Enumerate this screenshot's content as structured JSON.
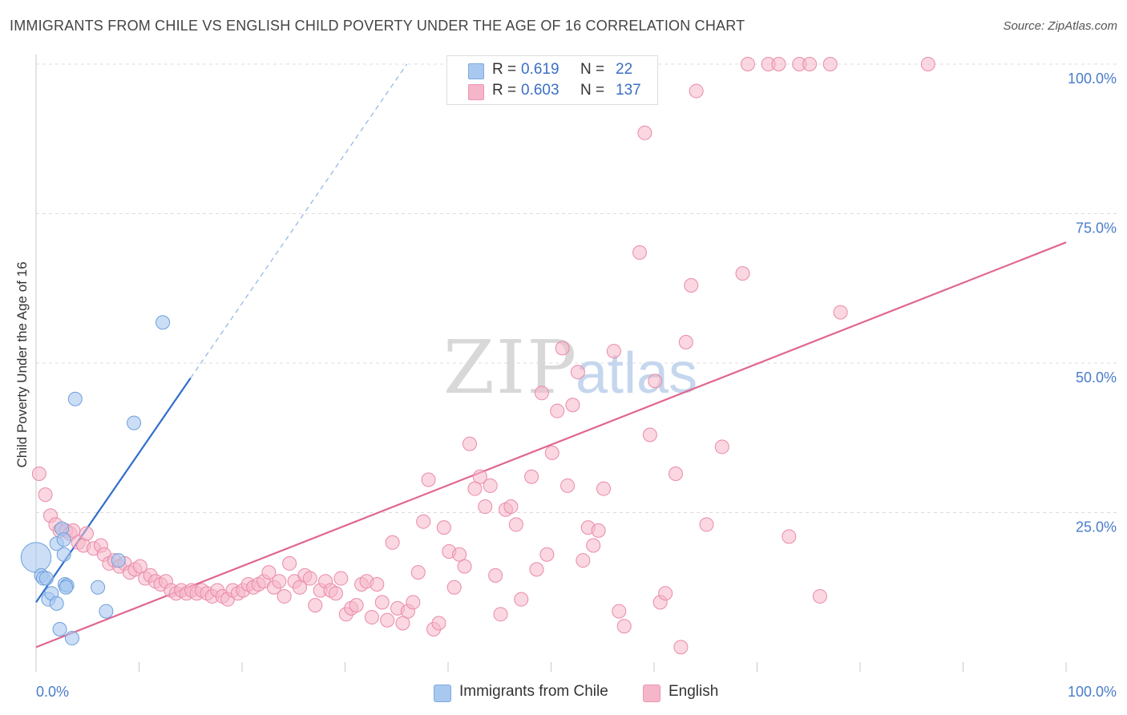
{
  "title": "IMMIGRANTS FROM CHILE VS ENGLISH CHILD POVERTY UNDER THE AGE OF 16 CORRELATION CHART",
  "source": "Source: ZipAtlas.com",
  "watermark": {
    "zip": "ZIP",
    "atlas": "atlas"
  },
  "legend": {
    "rows": [
      {
        "r_label": "R =",
        "r_value": "0.619",
        "n_label": "N =",
        "n_value": "22",
        "color": "#a9c8f0"
      },
      {
        "r_label": "R =",
        "r_value": "0.603",
        "n_label": "N =",
        "n_value": "137",
        "color": "#f6b6c9"
      }
    ]
  },
  "bottom_legend": [
    {
      "label": "Immigrants from Chile",
      "color": "#a9c8f0"
    },
    {
      "label": "English",
      "color": "#f6b6c9"
    }
  ],
  "chart_data": {
    "type": "scatter",
    "title": "IMMIGRANTS FROM CHILE VS ENGLISH CHILD POVERTY UNDER THE AGE OF 16 CORRELATION CHART",
    "xlabel": "",
    "ylabel": "Child Poverty Under the Age of 16",
    "xlim": [
      0,
      100
    ],
    "ylim": [
      0,
      100
    ],
    "x_tick_labels": [
      "0.0%",
      "100.0%"
    ],
    "y_tick_labels": [
      "25.0%",
      "50.0%",
      "75.0%",
      "100.0%"
    ],
    "y_ticks": [
      25,
      50,
      75,
      100
    ],
    "grid": true,
    "series": [
      {
        "name": "Immigrants from Chile",
        "color": "#a9c8f0",
        "stroke": "#6e9fdc",
        "trend_color": "#2f6fc9",
        "trend": {
          "x0": 0,
          "y0": 10,
          "x1": 15,
          "y1": 47.5,
          "dash_to_x": 36,
          "dash_to_y": 100
        },
        "points": [
          [
            0,
            17.5,
            2.2
          ],
          [
            0.5,
            14.5,
            1
          ],
          [
            0.7,
            14.0,
            1
          ],
          [
            1.2,
            10.5,
            1
          ],
          [
            1.5,
            11.5,
            1
          ],
          [
            2.0,
            19.8,
            1
          ],
          [
            2.3,
            5.5,
            1
          ],
          [
            2.0,
            9.8,
            1
          ],
          [
            2.5,
            22.3,
            1
          ],
          [
            2.7,
            18.0,
            1
          ],
          [
            2.7,
            20.5,
            1
          ],
          [
            2.8,
            13.0,
            1
          ],
          [
            3.0,
            12.8,
            1
          ],
          [
            3.5,
            4.0,
            1
          ],
          [
            3.8,
            44.0,
            1
          ],
          [
            6.0,
            12.5,
            1
          ],
          [
            6.8,
            8.5,
            1
          ],
          [
            9.5,
            40.0,
            1
          ],
          [
            12.3,
            56.8,
            1
          ],
          [
            8.0,
            17.0,
            1
          ],
          [
            1.0,
            14.0,
            1
          ],
          [
            2.9,
            12.5,
            1
          ]
        ]
      },
      {
        "name": "English",
        "color": "#f6b6c9",
        "stroke": "#ea8aa9",
        "trend_color": "#e06690",
        "trend": {
          "x0": 0,
          "y0": 2.5,
          "x1": 100,
          "y1": 70.2
        },
        "points": [
          [
            0.3,
            31.5
          ],
          [
            0.9,
            28.0
          ],
          [
            1.4,
            24.5
          ],
          [
            1.9,
            23.0
          ],
          [
            2.3,
            22.0
          ],
          [
            2.9,
            22.0
          ],
          [
            3.3,
            21.5
          ],
          [
            3.6,
            22.0
          ],
          [
            4.1,
            20.0
          ],
          [
            4.6,
            19.5
          ],
          [
            4.9,
            21.5
          ],
          [
            5.6,
            19.0
          ],
          [
            6.3,
            19.5
          ],
          [
            6.6,
            18.0
          ],
          [
            7.1,
            16.5
          ],
          [
            7.6,
            17.0
          ],
          [
            8.1,
            16.0
          ],
          [
            8.6,
            16.5
          ],
          [
            9.1,
            15.0
          ],
          [
            9.6,
            15.5
          ],
          [
            10.1,
            16.0
          ],
          [
            10.6,
            14.0
          ],
          [
            11.1,
            14.5
          ],
          [
            11.6,
            13.5
          ],
          [
            12.1,
            13.0
          ],
          [
            12.6,
            13.5
          ],
          [
            13.1,
            12.0
          ],
          [
            13.6,
            11.5
          ],
          [
            14.1,
            12.0
          ],
          [
            14.6,
            11.5
          ],
          [
            15.1,
            12.0
          ],
          [
            15.6,
            11.5
          ],
          [
            16.1,
            12.0
          ],
          [
            16.6,
            11.5
          ],
          [
            17.1,
            11.0
          ],
          [
            17.6,
            12.0
          ],
          [
            18.1,
            11.0
          ],
          [
            18.6,
            10.5
          ],
          [
            19.1,
            12.0
          ],
          [
            19.6,
            11.5
          ],
          [
            20.1,
            12.0
          ],
          [
            20.6,
            13.0
          ],
          [
            21.1,
            12.5
          ],
          [
            21.6,
            13.0
          ],
          [
            22.1,
            13.5
          ],
          [
            22.6,
            15.0
          ],
          [
            23.1,
            12.5
          ],
          [
            23.6,
            13.5
          ],
          [
            24.1,
            11.0
          ],
          [
            24.6,
            16.5
          ],
          [
            25.1,
            13.5
          ],
          [
            25.6,
            12.5
          ],
          [
            26.1,
            14.5
          ],
          [
            26.6,
            14.0
          ],
          [
            27.1,
            9.5
          ],
          [
            27.6,
            12.0
          ],
          [
            28.1,
            13.5
          ],
          [
            28.6,
            12.0
          ],
          [
            29.1,
            11.5
          ],
          [
            29.6,
            14.0
          ],
          [
            30.1,
            8.0
          ],
          [
            30.6,
            9.0
          ],
          [
            31.1,
            9.5
          ],
          [
            31.6,
            13.0
          ],
          [
            32.1,
            13.5
          ],
          [
            32.6,
            7.5
          ],
          [
            33.1,
            13.0
          ],
          [
            33.6,
            10.0
          ],
          [
            34.1,
            7.0
          ],
          [
            34.6,
            20.0
          ],
          [
            35.1,
            9.0
          ],
          [
            35.6,
            6.5
          ],
          [
            36.1,
            8.5
          ],
          [
            36.6,
            10.0
          ],
          [
            37.1,
            15.0
          ],
          [
            37.6,
            23.5
          ],
          [
            38.1,
            30.5
          ],
          [
            38.6,
            5.5
          ],
          [
            39.1,
            6.5
          ],
          [
            39.6,
            22.5
          ],
          [
            40.1,
            18.5
          ],
          [
            40.6,
            12.5
          ],
          [
            41.1,
            18.0
          ],
          [
            41.6,
            16.0
          ],
          [
            42.1,
            36.5
          ],
          [
            42.6,
            29.0
          ],
          [
            43.1,
            31.0
          ],
          [
            43.6,
            26.0
          ],
          [
            44.1,
            29.5
          ],
          [
            44.6,
            14.5
          ],
          [
            45.1,
            8.0
          ],
          [
            45.6,
            25.5
          ],
          [
            46.1,
            26.0
          ],
          [
            46.6,
            23.0
          ],
          [
            47.1,
            10.5
          ],
          [
            48.1,
            31.0
          ],
          [
            48.6,
            15.5
          ],
          [
            49.1,
            45.0
          ],
          [
            49.6,
            18.0
          ],
          [
            50.1,
            35.0
          ],
          [
            50.6,
            42.0
          ],
          [
            51.1,
            52.5
          ],
          [
            51.6,
            29.5
          ],
          [
            52.1,
            43.0
          ],
          [
            52.6,
            48.5
          ],
          [
            53.1,
            17.0
          ],
          [
            53.6,
            22.5
          ],
          [
            54.1,
            19.5
          ],
          [
            54.6,
            22.0
          ],
          [
            55.1,
            29.0
          ],
          [
            56.1,
            52.0
          ],
          [
            56.6,
            8.5
          ],
          [
            57.1,
            6.0
          ],
          [
            58.6,
            68.5
          ],
          [
            59.1,
            88.5
          ],
          [
            59.6,
            38.0
          ],
          [
            60.1,
            47.0
          ],
          [
            60.6,
            10.0
          ],
          [
            61.1,
            11.5
          ],
          [
            62.1,
            31.5
          ],
          [
            62.6,
            2.5
          ],
          [
            63.1,
            53.5
          ],
          [
            63.6,
            63.0
          ],
          [
            64.1,
            95.5
          ],
          [
            65.1,
            23.0
          ],
          [
            66.6,
            36.0
          ],
          [
            68.6,
            65.0
          ],
          [
            69.1,
            100.0
          ],
          [
            71.1,
            100.0
          ],
          [
            72.1,
            100.0
          ],
          [
            73.1,
            21.0
          ],
          [
            74.1,
            100.0
          ],
          [
            75.1,
            100.0
          ],
          [
            76.1,
            11.0
          ],
          [
            77.1,
            100.0
          ],
          [
            78.1,
            58.5
          ],
          [
            86.6,
            100.0
          ]
        ]
      }
    ]
  }
}
